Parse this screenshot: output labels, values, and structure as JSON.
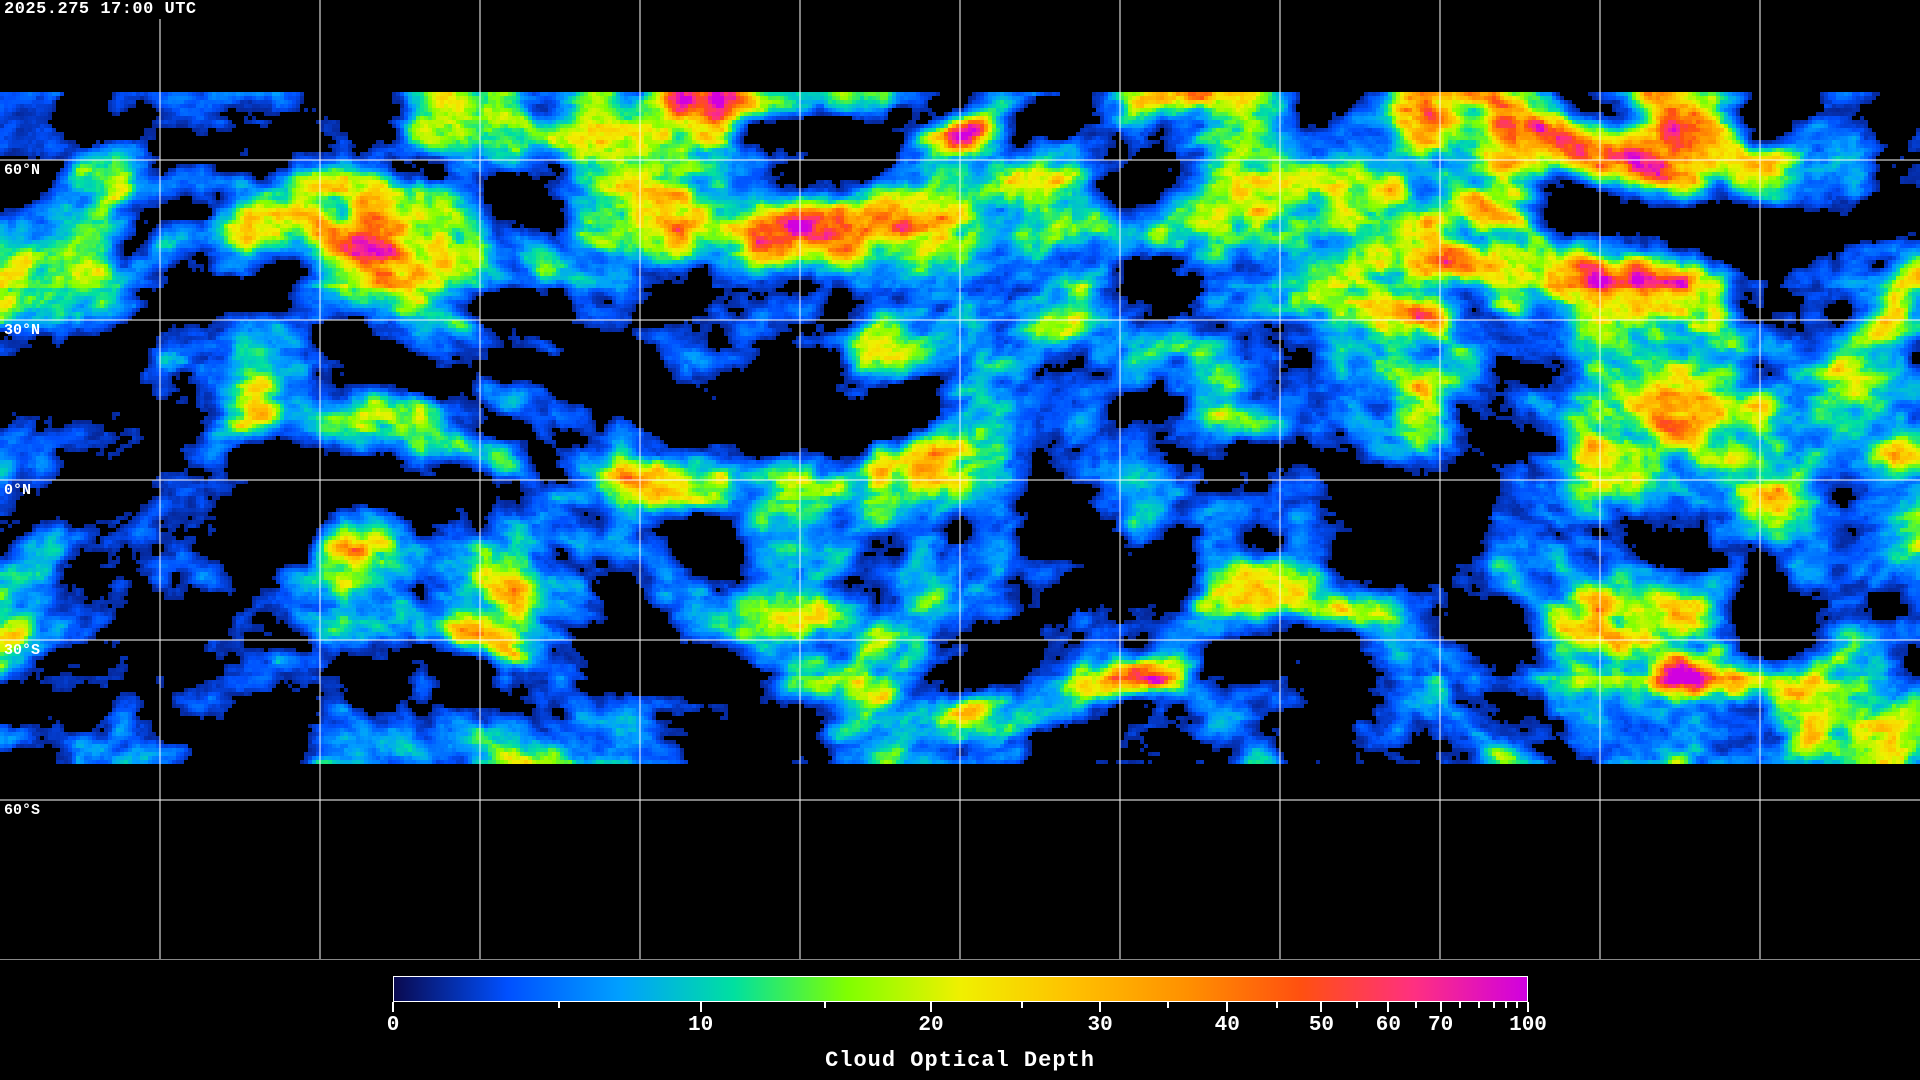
{
  "timestamp": "2025.275 17:00 UTC",
  "map": {
    "projection": "equirectangular",
    "grid_lon_step_deg": 30,
    "grid_lat_step_deg": 30,
    "grid_color": "#ffffff",
    "coastline_color": "#ffffff",
    "lat_labels": [
      "60°N",
      "30°N",
      "0°N",
      "30°S",
      "60°S"
    ]
  },
  "colorbar": {
    "title": "Cloud Optical Depth",
    "range": [
      0,
      100
    ],
    "major_ticks": [
      0,
      10,
      20,
      30,
      40,
      50,
      60,
      70,
      100
    ],
    "major_labels": [
      "0",
      "10",
      "20",
      "30",
      "40",
      "50",
      "60",
      "70",
      "100"
    ],
    "minor_ticks": [
      5,
      15,
      25,
      35,
      45,
      55,
      65,
      75,
      80,
      85,
      90,
      95
    ],
    "colors": [
      "#0a0a50",
      "#0050ff",
      "#00a0ff",
      "#00e0a0",
      "#80ff00",
      "#f0f000",
      "#ffc000",
      "#ff9000",
      "#ff5010",
      "#ff3080",
      "#d000e0"
    ]
  }
}
